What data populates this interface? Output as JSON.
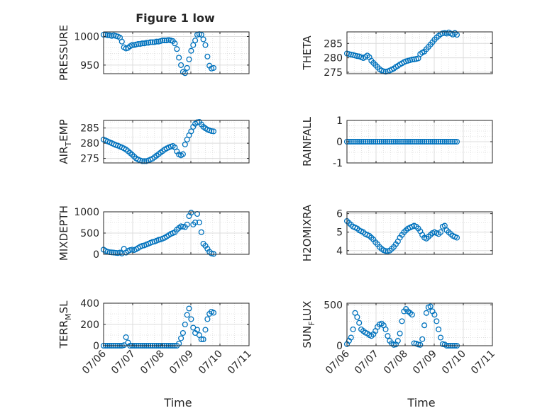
{
  "figure": {
    "title": "Figure 1 low",
    "xlabel": "Time",
    "x_tick_labels": [
      "07/06",
      "07/07",
      "07/08",
      "07/09",
      "07/10",
      "07/11"
    ],
    "marker_color": "#0072BD",
    "grid_color": "#DCDCDC",
    "axis_color": "#262626"
  },
  "chart_data": [
    {
      "type": "scatter",
      "ylabel": "PRESSURE",
      "ylabel_sub": "",
      "ylabel_tail": "",
      "ylim": [
        935,
        1008
      ],
      "yticks": [
        950,
        1000
      ],
      "xlim": [
        0,
        5
      ],
      "x": [
        0.0,
        0.07,
        0.14,
        0.21,
        0.28,
        0.35,
        0.42,
        0.49,
        0.56,
        0.63,
        0.7,
        0.77,
        0.84,
        0.91,
        0.98,
        1.05,
        1.12,
        1.19,
        1.26,
        1.33,
        1.4,
        1.47,
        1.54,
        1.61,
        1.68,
        1.75,
        1.82,
        1.89,
        1.96,
        2.03,
        2.1,
        2.17,
        2.24,
        2.31,
        2.38,
        2.45,
        2.52,
        2.59,
        2.66,
        2.73,
        2.8,
        2.87,
        2.94,
        3.01,
        3.08,
        3.15,
        3.22,
        3.29,
        3.36,
        3.43,
        3.5,
        3.57,
        3.64,
        3.71,
        3.78
      ],
      "y": [
        1003,
        1003,
        1002,
        1002,
        1001,
        1002,
        1001,
        1000,
        998,
        991,
        981,
        979,
        980,
        983,
        985,
        985,
        986,
        987,
        987,
        988,
        988,
        989,
        989,
        990,
        990,
        990,
        991,
        991,
        992,
        993,
        993,
        993,
        994,
        993,
        992,
        988,
        978,
        963,
        950,
        938,
        936,
        945,
        960,
        975,
        985,
        993,
        1003,
        1004,
        1003,
        995,
        985,
        965,
        949,
        944,
        945
      ]
    },
    {
      "type": "scatter",
      "ylabel": "THETA",
      "ylabel_sub": "",
      "ylabel_tail": "",
      "ylim": [
        274.5,
        289
      ],
      "yticks": [
        275,
        280,
        285
      ],
      "xlim": [
        0,
        5
      ],
      "x": [
        0.0,
        0.07,
        0.14,
        0.21,
        0.28,
        0.35,
        0.42,
        0.49,
        0.56,
        0.63,
        0.7,
        0.77,
        0.84,
        0.91,
        0.98,
        1.05,
        1.12,
        1.19,
        1.26,
        1.33,
        1.4,
        1.47,
        1.54,
        1.61,
        1.68,
        1.75,
        1.82,
        1.89,
        1.96,
        2.03,
        2.1,
        2.17,
        2.24,
        2.31,
        2.38,
        2.45,
        2.52,
        2.59,
        2.66,
        2.73,
        2.8,
        2.87,
        2.94,
        3.01,
        3.08,
        3.15,
        3.22,
        3.29,
        3.36,
        3.43,
        3.5,
        3.57,
        3.64,
        3.71,
        3.78
      ],
      "y": [
        281.5,
        281.3,
        281.1,
        281,
        280.8,
        280.6,
        280.5,
        280.2,
        279.9,
        280.3,
        280.8,
        280.2,
        279,
        278.2,
        277.5,
        276.8,
        276.1,
        275.6,
        275.3,
        275.2,
        275.3,
        275.6,
        275.9,
        276.3,
        276.8,
        277.2,
        277.7,
        278.1,
        278.5,
        278.8,
        279,
        279.2,
        279.4,
        279.5,
        279.6,
        279.8,
        281.3,
        281.8,
        282.2,
        283,
        283.8,
        284.6,
        285.4,
        286.3,
        287,
        287.6,
        288.2,
        288.5,
        288.6,
        288.4,
        288.8,
        288.4,
        288.1,
        288.6,
        288
      ]
    },
    {
      "type": "scatter",
      "ylabel": "AIR",
      "ylabel_sub": "T",
      "ylabel_tail": "EMP",
      "ylim": [
        273.5,
        287.5
      ],
      "yticks": [
        275,
        280,
        285
      ],
      "xlim": [
        0,
        5
      ],
      "x": [
        0.0,
        0.07,
        0.14,
        0.21,
        0.28,
        0.35,
        0.42,
        0.49,
        0.56,
        0.63,
        0.7,
        0.77,
        0.84,
        0.91,
        0.98,
        1.05,
        1.12,
        1.19,
        1.26,
        1.33,
        1.4,
        1.47,
        1.54,
        1.61,
        1.68,
        1.75,
        1.82,
        1.89,
        1.96,
        2.03,
        2.1,
        2.17,
        2.24,
        2.31,
        2.38,
        2.45,
        2.52,
        2.59,
        2.66,
        2.73,
        2.8,
        2.87,
        2.94,
        3.01,
        3.08,
        3.15,
        3.22,
        3.29,
        3.36,
        3.43,
        3.5,
        3.57,
        3.64,
        3.71,
        3.78
      ],
      "y": [
        281.2,
        280.9,
        280.6,
        280.3,
        280,
        279.7,
        279.4,
        279.2,
        278.9,
        278.6,
        278.3,
        277.9,
        277.4,
        276.8,
        276.2,
        275.6,
        275,
        274.6,
        274.3,
        274.1,
        274.1,
        274.1,
        274.3,
        274.6,
        274.9,
        275.4,
        275.9,
        276.4,
        276.9,
        277.4,
        277.9,
        278.3,
        278.6,
        278.9,
        279.1,
        278.6,
        277.3,
        276.3,
        276,
        276.4,
        279.6,
        281.2,
        282.6,
        283.9,
        285.4,
        286.4,
        286.9,
        287,
        286.2,
        285.4,
        284.9,
        284.5,
        284.2,
        284,
        283.9
      ]
    },
    {
      "type": "scatter",
      "ylabel": "RAINFALL",
      "ylabel_sub": "",
      "ylabel_tail": "",
      "ylim": [
        -1,
        1
      ],
      "yticks": [
        -1,
        0,
        1
      ],
      "xlim": [
        0,
        5
      ],
      "x": [
        0.0,
        0.07,
        0.14,
        0.21,
        0.28,
        0.35,
        0.42,
        0.49,
        0.56,
        0.63,
        0.7,
        0.77,
        0.84,
        0.91,
        0.98,
        1.05,
        1.12,
        1.19,
        1.26,
        1.33,
        1.4,
        1.47,
        1.54,
        1.61,
        1.68,
        1.75,
        1.82,
        1.89,
        1.96,
        2.03,
        2.1,
        2.17,
        2.24,
        2.31,
        2.38,
        2.45,
        2.52,
        2.59,
        2.66,
        2.73,
        2.8,
        2.87,
        2.94,
        3.01,
        3.08,
        3.15,
        3.22,
        3.29,
        3.36,
        3.43,
        3.5,
        3.57,
        3.64,
        3.71,
        3.78
      ],
      "y": [
        0,
        0,
        0,
        0,
        0,
        0,
        0,
        0,
        0,
        0,
        0,
        0,
        0,
        0,
        0,
        0,
        0,
        0,
        0,
        0,
        0,
        0,
        0,
        0,
        0,
        0,
        0,
        0,
        0,
        0,
        0,
        0,
        0,
        0,
        0,
        0,
        0,
        0,
        0,
        0,
        0,
        0,
        0,
        0,
        0,
        0,
        0,
        0,
        0,
        0,
        0,
        0,
        0,
        0,
        0
      ]
    },
    {
      "type": "scatter",
      "ylabel": "MIXDEPTH",
      "ylabel_sub": "",
      "ylabel_tail": "",
      "ylim": [
        0,
        1000
      ],
      "yticks": [
        0,
        500,
        1000
      ],
      "xlim": [
        0,
        5
      ],
      "x": [
        0.0,
        0.07,
        0.14,
        0.21,
        0.28,
        0.35,
        0.42,
        0.49,
        0.56,
        0.63,
        0.7,
        0.77,
        0.84,
        0.91,
        0.98,
        1.05,
        1.12,
        1.19,
        1.26,
        1.33,
        1.4,
        1.47,
        1.54,
        1.61,
        1.68,
        1.75,
        1.82,
        1.89,
        1.96,
        2.03,
        2.1,
        2.17,
        2.24,
        2.31,
        2.38,
        2.45,
        2.52,
        2.59,
        2.66,
        2.73,
        2.8,
        2.87,
        2.94,
        3.01,
        3.08,
        3.15,
        3.22,
        3.29,
        3.36,
        3.43,
        3.5,
        3.57,
        3.64,
        3.71,
        3.78
      ],
      "y": [
        110,
        80,
        60,
        50,
        45,
        40,
        35,
        30,
        40,
        20,
        130,
        40,
        80,
        100,
        110,
        100,
        120,
        150,
        180,
        200,
        210,
        230,
        250,
        270,
        290,
        300,
        320,
        340,
        350,
        370,
        390,
        420,
        450,
        480,
        500,
        520,
        580,
        620,
        660,
        650,
        640,
        700,
        900,
        980,
        700,
        750,
        950,
        750,
        520,
        250,
        200,
        130,
        60,
        20,
        10
      ]
    },
    {
      "type": "scatter",
      "ylabel": "H2OMIXRA",
      "ylabel_sub": "",
      "ylabel_tail": "",
      "ylim": [
        3.8,
        6.1
      ],
      "yticks": [
        4,
        5,
        6
      ],
      "xlim": [
        0,
        5
      ],
      "x": [
        0.0,
        0.07,
        0.14,
        0.21,
        0.28,
        0.35,
        0.42,
        0.49,
        0.56,
        0.63,
        0.7,
        0.77,
        0.84,
        0.91,
        0.98,
        1.05,
        1.12,
        1.19,
        1.26,
        1.33,
        1.4,
        1.47,
        1.54,
        1.61,
        1.68,
        1.75,
        1.82,
        1.89,
        1.96,
        2.03,
        2.1,
        2.17,
        2.24,
        2.31,
        2.38,
        2.45,
        2.52,
        2.59,
        2.66,
        2.73,
        2.8,
        2.87,
        2.94,
        3.01,
        3.08,
        3.15,
        3.22,
        3.29,
        3.36,
        3.43,
        3.5,
        3.57,
        3.64,
        3.71,
        3.78
      ],
      "y": [
        5.6,
        5.5,
        5.4,
        5.3,
        5.25,
        5.2,
        5.1,
        5.05,
        5,
        4.9,
        4.85,
        4.8,
        4.7,
        4.6,
        4.45,
        4.35,
        4.2,
        4.1,
        4.02,
        3.98,
        3.97,
        4,
        4.1,
        4.2,
        4.35,
        4.5,
        4.7,
        4.85,
        5,
        5.1,
        5.2,
        5.25,
        5.3,
        5.35,
        5.3,
        5.2,
        5.05,
        4.85,
        4.7,
        4.65,
        4.75,
        4.85,
        4.95,
        5,
        4.95,
        4.9,
        5,
        5.3,
        5.35,
        5.1,
        5,
        4.9,
        4.8,
        4.75,
        4.7
      ]
    },
    {
      "type": "scatter",
      "ylabel": "TERR",
      "ylabel_sub": "M",
      "ylabel_tail": "SL",
      "ylim": [
        0,
        400
      ],
      "yticks": [
        0,
        200,
        400
      ],
      "xlim": [
        0,
        5
      ],
      "x": [
        0.0,
        0.07,
        0.14,
        0.21,
        0.28,
        0.35,
        0.42,
        0.49,
        0.56,
        0.63,
        0.7,
        0.77,
        0.84,
        0.91,
        0.98,
        1.05,
        1.12,
        1.19,
        1.26,
        1.33,
        1.4,
        1.47,
        1.54,
        1.61,
        1.68,
        1.75,
        1.82,
        1.89,
        1.96,
        2.03,
        2.1,
        2.17,
        2.24,
        2.31,
        2.38,
        2.45,
        2.52,
        2.59,
        2.66,
        2.73,
        2.8,
        2.87,
        2.94,
        3.01,
        3.08,
        3.15,
        3.22,
        3.29,
        3.36,
        3.43,
        3.5,
        3.57,
        3.64,
        3.71,
        3.78
      ],
      "y": [
        0,
        0,
        0,
        0,
        0,
        0,
        0,
        0,
        0,
        0,
        5,
        80,
        30,
        0,
        0,
        0,
        0,
        0,
        0,
        0,
        0,
        0,
        0,
        0,
        0,
        0,
        0,
        0,
        0,
        0,
        0,
        0,
        0,
        0,
        0,
        0,
        0,
        20,
        70,
        120,
        200,
        290,
        350,
        250,
        170,
        120,
        150,
        100,
        60,
        60,
        150,
        250,
        300,
        320,
        310
      ]
    },
    {
      "type": "scatter",
      "ylabel": "SUN",
      "ylabel_sub": "F",
      "ylabel_tail": "LUX",
      "ylim": [
        0,
        520
      ],
      "yticks": [
        0,
        500
      ],
      "xlim": [
        0,
        5
      ],
      "x": [
        0.0,
        0.07,
        0.14,
        0.21,
        0.28,
        0.35,
        0.42,
        0.49,
        0.56,
        0.63,
        0.7,
        0.77,
        0.84,
        0.91,
        0.98,
        1.05,
        1.12,
        1.19,
        1.26,
        1.33,
        1.4,
        1.47,
        1.54,
        1.61,
        1.68,
        1.75,
        1.82,
        1.89,
        1.96,
        2.03,
        2.1,
        2.17,
        2.24,
        2.31,
        2.38,
        2.45,
        2.52,
        2.59,
        2.66,
        2.73,
        2.8,
        2.87,
        2.94,
        3.01,
        3.08,
        3.15,
        3.22,
        3.29,
        3.36,
        3.43,
        3.5,
        3.57,
        3.64,
        3.71,
        3.78
      ],
      "y": [
        20,
        60,
        100,
        200,
        400,
        350,
        280,
        200,
        180,
        160,
        150,
        130,
        120,
        140,
        180,
        230,
        260,
        270,
        250,
        200,
        120,
        60,
        30,
        10,
        15,
        60,
        150,
        300,
        420,
        450,
        420,
        400,
        380,
        30,
        25,
        15,
        10,
        80,
        250,
        400,
        470,
        480,
        420,
        380,
        300,
        200,
        100,
        20,
        15,
        0,
        0,
        0,
        0,
        0,
        0
      ]
    }
  ]
}
